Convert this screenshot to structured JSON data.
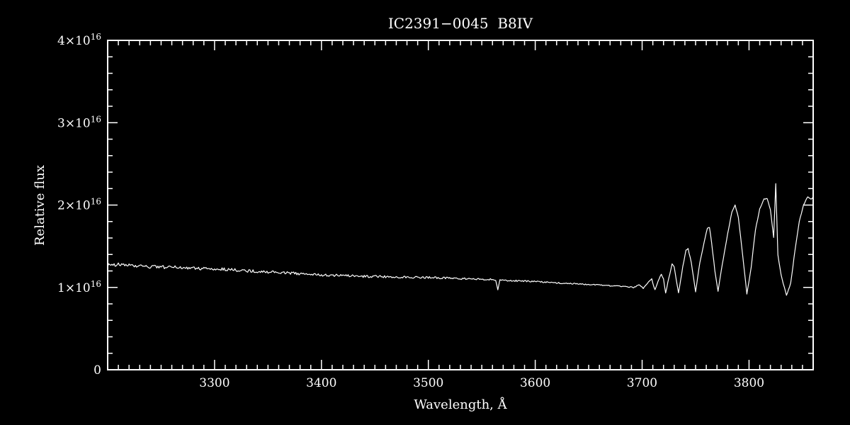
{
  "page": {
    "background": "#000000",
    "foreground": "#ffffff"
  },
  "chart_data": {
    "type": "line",
    "title": "IC2391−0045  B8IV",
    "xlabel": "Wavelength, Å",
    "ylabel": "Relative flux",
    "y_unit": "flux values in units of 10^16 (axis shows 0 to 4×10¹⁶)",
    "xlim": [
      3200,
      3860
    ],
    "ylim": [
      0,
      4
    ],
    "x_major_ticks": [
      3300,
      3400,
      3500,
      3600,
      3700,
      3800
    ],
    "x_minor_step": 10,
    "y_major_ticks": [
      {
        "v": 0,
        "m": "0",
        "e": ""
      },
      {
        "v": 1,
        "m": "1×10",
        "e": "16"
      },
      {
        "v": 2,
        "m": "2×10",
        "e": "16"
      },
      {
        "v": 3,
        "m": "3×10",
        "e": "16"
      },
      {
        "v": 4,
        "m": "4×10",
        "e": "16"
      }
    ],
    "y_minor_step": 0.2,
    "grid": false,
    "legend": null,
    "background": "#000000",
    "axis_color": "#ffffff",
    "line_color": "#ffffff",
    "noise": {
      "amp_left": 0.022,
      "amp_right": 0.006
    },
    "series": [
      {
        "name": "IC2391-0045 spectrum",
        "points": [
          [
            3200,
            1.27
          ],
          [
            3212,
            1.28
          ],
          [
            3224,
            1.26
          ],
          [
            3240,
            1.25
          ],
          [
            3256,
            1.245
          ],
          [
            3272,
            1.24
          ],
          [
            3288,
            1.23
          ],
          [
            3300,
            1.225
          ],
          [
            3316,
            1.215
          ],
          [
            3332,
            1.2
          ],
          [
            3348,
            1.19
          ],
          [
            3364,
            1.18
          ],
          [
            3380,
            1.165
          ],
          [
            3400,
            1.15
          ],
          [
            3420,
            1.143
          ],
          [
            3440,
            1.135
          ],
          [
            3460,
            1.13
          ],
          [
            3480,
            1.125
          ],
          [
            3500,
            1.12
          ],
          [
            3520,
            1.112
          ],
          [
            3540,
            1.103
          ],
          [
            3560,
            1.095
          ],
          [
            3563,
            1.09
          ],
          [
            3565,
            0.96
          ],
          [
            3567,
            1.09
          ],
          [
            3580,
            1.082
          ],
          [
            3600,
            1.07
          ],
          [
            3620,
            1.056
          ],
          [
            3640,
            1.042
          ],
          [
            3660,
            1.027
          ],
          [
            3680,
            1.012
          ],
          [
            3692,
            1.0
          ],
          [
            3697,
            1.03
          ],
          [
            3701,
            0.99
          ],
          [
            3705,
            1.05
          ],
          [
            3709,
            1.1
          ],
          [
            3712,
            0.97
          ],
          [
            3715,
            1.08
          ],
          [
            3718,
            1.16
          ],
          [
            3720,
            1.1
          ],
          [
            3722,
            0.93
          ],
          [
            3725,
            1.12
          ],
          [
            3728,
            1.28
          ],
          [
            3730,
            1.25
          ],
          [
            3734,
            0.93
          ],
          [
            3738,
            1.25
          ],
          [
            3741,
            1.45
          ],
          [
            3743,
            1.47
          ],
          [
            3746,
            1.3
          ],
          [
            3750,
            0.95
          ],
          [
            3754,
            1.3
          ],
          [
            3758,
            1.55
          ],
          [
            3761,
            1.72
          ],
          [
            3763,
            1.73
          ],
          [
            3765,
            1.55
          ],
          [
            3768,
            1.2
          ],
          [
            3771,
            0.95
          ],
          [
            3775,
            1.28
          ],
          [
            3780,
            1.65
          ],
          [
            3784,
            1.92
          ],
          [
            3787,
            2.0
          ],
          [
            3790,
            1.85
          ],
          [
            3794,
            1.4
          ],
          [
            3798,
            0.92
          ],
          [
            3802,
            1.25
          ],
          [
            3806,
            1.7
          ],
          [
            3810,
            1.95
          ],
          [
            3814,
            2.07
          ],
          [
            3817,
            2.08
          ],
          [
            3820,
            1.95
          ],
          [
            3823,
            1.6
          ],
          [
            3825,
            2.26
          ],
          [
            3827,
            1.4
          ],
          [
            3830,
            1.15
          ],
          [
            3835,
            0.9
          ],
          [
            3839,
            1.05
          ],
          [
            3843,
            1.45
          ],
          [
            3847,
            1.8
          ],
          [
            3851,
            2.0
          ],
          [
            3855,
            2.1
          ],
          [
            3858,
            2.07
          ],
          [
            3860,
            2.1
          ]
        ]
      }
    ],
    "annotations": [
      {
        "x": 3565,
        "note": "narrow downward artifact spike in continuum"
      },
      {
        "x": 3825,
        "note": "narrow upward spike above Balmer-line peak"
      }
    ]
  }
}
